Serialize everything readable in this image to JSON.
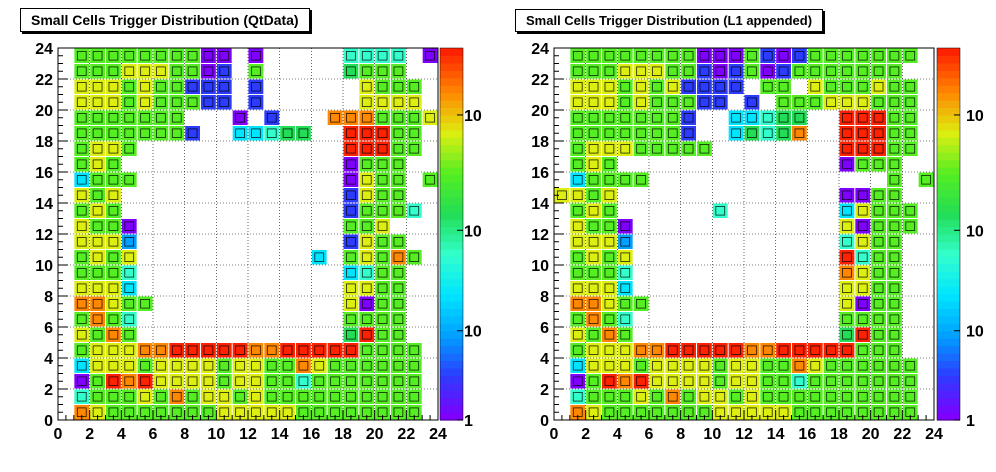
{
  "titles": {
    "left": "Small Cells Trigger Distribution (QtData)",
    "right": "Small Cells Trigger Distribution (L1 appended)"
  },
  "footer": "",
  "chart_data": [
    {
      "type": "heatmap",
      "title": "Small Cells Trigger Distribution (QtData)",
      "xlabel": "",
      "ylabel": "",
      "xlim": [
        0,
        24
      ],
      "ylim": [
        0,
        24
      ],
      "xticks": [
        0,
        2,
        4,
        6,
        8,
        10,
        12,
        14,
        16,
        18,
        20,
        22,
        24
      ],
      "yticks": [
        0,
        2,
        4,
        6,
        8,
        10,
        12,
        14,
        16,
        18,
        20,
        22,
        24
      ],
      "z_scale": "log",
      "colorbar_labels": [
        "1",
        "10",
        "10",
        "10"
      ],
      "grid": true,
      "grid_encoding": "rows listed top (y=23) to bottom (y=0); each row is 24 characters for x=0..23; '.' = empty; 0-9 = color level from purple (0) to red (9)",
      "grid_rows": [
        ".6666666600.0.....4444.0",
        ".6667776601.6.....5666..",
        ".7776766111.1......7666.",
        ".7776766611.1......7777.",
        ".6666666...0.1...8886667",
        ".66666661..33455..99966.",
        ".6776.............99966.",
        ".676..............0666..",
        ".3666.............0766.6",
        ".767..............1766..",
        ".676..............16664.",
        ".7660.............667...",
        ".7772.............1766..",
        ".6767...........3.67686.",
        ".6664.............3466..",
        ".7773.............7766..",
        ".88766............7066..",
        ".6864.............6666..",
        ".7686.............5966..",
        ".6777889999988999996666.",
        ".3777677776776687666666.",
        ".0698977776776646666666.",
        ".4666768677676666666666.",
        ".8766666667777766666666."
      ]
    },
    {
      "type": "heatmap",
      "title": "Small Cells Trigger Distribution (L1 appended)",
      "xlabel": "",
      "ylabel": "",
      "xlim": [
        0,
        24
      ],
      "ylim": [
        0,
        24
      ],
      "xticks": [
        0,
        2,
        4,
        6,
        8,
        10,
        12,
        14,
        16,
        18,
        20,
        22,
        24
      ],
      "yticks": [
        0,
        2,
        4,
        6,
        8,
        10,
        12,
        14,
        16,
        18,
        20,
        22,
        24
      ],
      "z_scale": "log",
      "colorbar_labels": [
        "1",
        "10",
        "10",
        "10"
      ],
      "grid": true,
      "grid_encoding": "rows listed top (y=23) to bottom (y=0); each row is 24 characters for x=0..23; '.' = empty; 0-9 = color level from purple (0) to red (9)",
      "grid_rows": [
        ".6666666600061016666666.",
        ".666777661016016666666..",
        ".77767671111.66.7666766.",
        ".7776766611.1.666777666.",
        ".66666661..33455..99966.",
        ".66666661..35458..99966.",
        ".677766666........99966.",
        ".676..............0666..",
        ".36666...............6.6",
        "7767..............0066..",
        ".676......4.......37666.",
        ".7660.............70666.",
        ".7772.............4766..",
        ".6767.............9466..",
        ".6664.............8766..",
        ".7773.............7766..",
        ".88766............7066..",
        ".6864.............6666..",
        ".7686.............5966..",
        ".677788999998899999666..",
        ".3777677776776687666666.",
        ".0698977776776646666666.",
        ".4666768677676666666666.",
        ".8766666667777766666666."
      ]
    }
  ],
  "palette": [
    "#7f00ff",
    "#2c3cff",
    "#00a0ff",
    "#00e5ff",
    "#33ffcc",
    "#22dd55",
    "#55ee22",
    "#ddee11",
    "#ff8800",
    "#ff2200"
  ]
}
